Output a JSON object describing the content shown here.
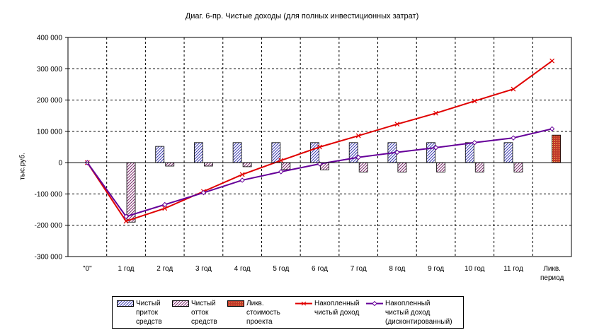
{
  "chart_data": {
    "type": "bar",
    "title": "Диаг. 6-пр. Чистые доходы (для полных инвестиционных затрат)",
    "xlabel": "",
    "ylabel": "тыс.руб.",
    "ylim": [
      -300000,
      400000
    ],
    "yticks": [
      400000,
      300000,
      200000,
      100000,
      0,
      -100000,
      -200000,
      -300000
    ],
    "ytick_labels": [
      "400 000",
      "300 000",
      "200 000",
      "100 000",
      "0",
      "-100 000",
      "-200 000",
      "-300 000"
    ],
    "grid": true,
    "legend_position": "bottom",
    "categories": [
      "\"0\"",
      "1 год",
      "2 год",
      "3 год",
      "4 год",
      "5 год",
      "6 год",
      "7 год",
      "8 год",
      "9 год",
      "10 год",
      "11 год",
      "Ликв.\nпериод"
    ],
    "series": [
      {
        "name": "Чистый\nприток\nсредств",
        "kind": "bar",
        "color": "#3b3bb0",
        "values": [
          0,
          0,
          52000,
          64000,
          64000,
          64000,
          64000,
          64000,
          64000,
          64000,
          64000,
          64000,
          0
        ]
      },
      {
        "name": "Чистый\nотток\nсредств",
        "kind": "bar",
        "color": "#7a2a6a",
        "values": [
          0,
          -190000,
          -11000,
          -11000,
          -13000,
          -22000,
          -23000,
          -30000,
          -30000,
          -30000,
          -30000,
          -30000,
          0
        ]
      },
      {
        "name": "Ликв.\nстоимость\nпроекта",
        "kind": "bar",
        "color": "#c0392b",
        "values": [
          0,
          0,
          0,
          0,
          0,
          0,
          0,
          0,
          0,
          0,
          0,
          0,
          88000
        ]
      },
      {
        "name": "Накопленный\nчистый доход",
        "kind": "line",
        "color": "#e00000",
        "values": [
          0,
          -187000,
          -146000,
          -92000,
          -38000,
          7000,
          50000,
          86000,
          123000,
          158000,
          197000,
          235000,
          325000
        ]
      },
      {
        "name": "Накопленный\nчистый доход\n(дисконтированный)",
        "kind": "line",
        "color": "#660099",
        "values": [
          0,
          -172000,
          -134000,
          -96000,
          -56000,
          -29000,
          -4000,
          17000,
          33000,
          48000,
          64000,
          79000,
          108000
        ]
      }
    ]
  }
}
